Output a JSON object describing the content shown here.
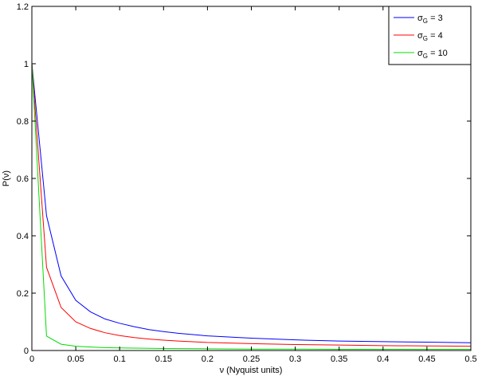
{
  "chart_data": {
    "type": "line",
    "title": "",
    "xlabel": "ν (Nyquist units)",
    "ylabel": "P(ν)",
    "xlim": [
      0,
      0.5
    ],
    "ylim": [
      0,
      1.2
    ],
    "xticks": [
      "0",
      "0.05",
      "0.1",
      "0.15",
      "0.2",
      "0.25",
      "0.3",
      "0.35",
      "0.4",
      "0.45",
      "0.5"
    ],
    "yticks": [
      "0",
      "0.2",
      "0.4",
      "0.6",
      "0.8",
      "1",
      "1.2"
    ],
    "grid": false,
    "legend_position": "top-right",
    "series": [
      {
        "name": "σG = 3",
        "legend_base": "σ",
        "legend_sub": "G",
        "legend_rest": " = 3",
        "color": "#0000ff",
        "x": [
          0,
          0.0167,
          0.0333,
          0.05,
          0.0667,
          0.0833,
          0.1,
          0.1167,
          0.1333,
          0.15,
          0.1667,
          0.2,
          0.25,
          0.3,
          0.35,
          0.4,
          0.45,
          0.5
        ],
        "y": [
          1.0,
          0.47,
          0.26,
          0.175,
          0.135,
          0.11,
          0.095,
          0.083,
          0.073,
          0.066,
          0.06,
          0.051,
          0.043,
          0.037,
          0.033,
          0.031,
          0.029,
          0.027
        ]
      },
      {
        "name": "σG = 4",
        "legend_base": "σ",
        "legend_sub": "G",
        "legend_rest": " = 4",
        "color": "#ff0000",
        "x": [
          0,
          0.0167,
          0.0333,
          0.05,
          0.0667,
          0.0833,
          0.1,
          0.1167,
          0.1333,
          0.15,
          0.1667,
          0.2,
          0.25,
          0.3,
          0.35,
          0.4,
          0.45,
          0.5
        ],
        "y": [
          1.0,
          0.29,
          0.15,
          0.1,
          0.077,
          0.062,
          0.052,
          0.045,
          0.04,
          0.036,
          0.033,
          0.028,
          0.024,
          0.021,
          0.019,
          0.017,
          0.016,
          0.015
        ]
      },
      {
        "name": "σG = 10",
        "legend_base": "σ",
        "legend_sub": "G",
        "legend_rest": " = 10",
        "color": "#00dd00",
        "x": [
          0,
          0.0167,
          0.0333,
          0.05,
          0.0667,
          0.0833,
          0.1,
          0.15,
          0.2,
          0.25,
          0.3,
          0.35,
          0.4,
          0.45,
          0.5
        ],
        "y": [
          1.0,
          0.05,
          0.022,
          0.015,
          0.012,
          0.01,
          0.009,
          0.007,
          0.006,
          0.005,
          0.005,
          0.004,
          0.004,
          0.004,
          0.004
        ]
      }
    ]
  }
}
